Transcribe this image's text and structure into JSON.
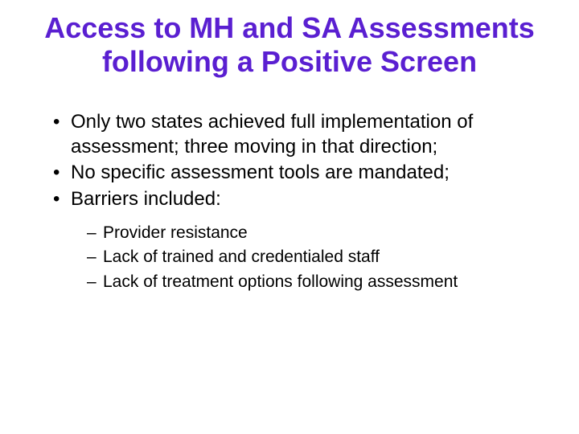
{
  "title": {
    "text": "Access to MH and SA Assessments following a Positive Screen",
    "color": "#5a1fd1",
    "fontsize": 36
  },
  "body": {
    "fontsize": 24,
    "color": "#000000",
    "bullets": [
      "Only two states achieved full implementation of assessment; three moving in that direction;",
      "No specific assessment tools are mandated;",
      "Barriers included:"
    ],
    "sub_fontsize": 21,
    "sub_bullets": [
      "Provider resistance",
      "Lack of trained and credentialed staff",
      "Lack of treatment options following assessment"
    ]
  }
}
